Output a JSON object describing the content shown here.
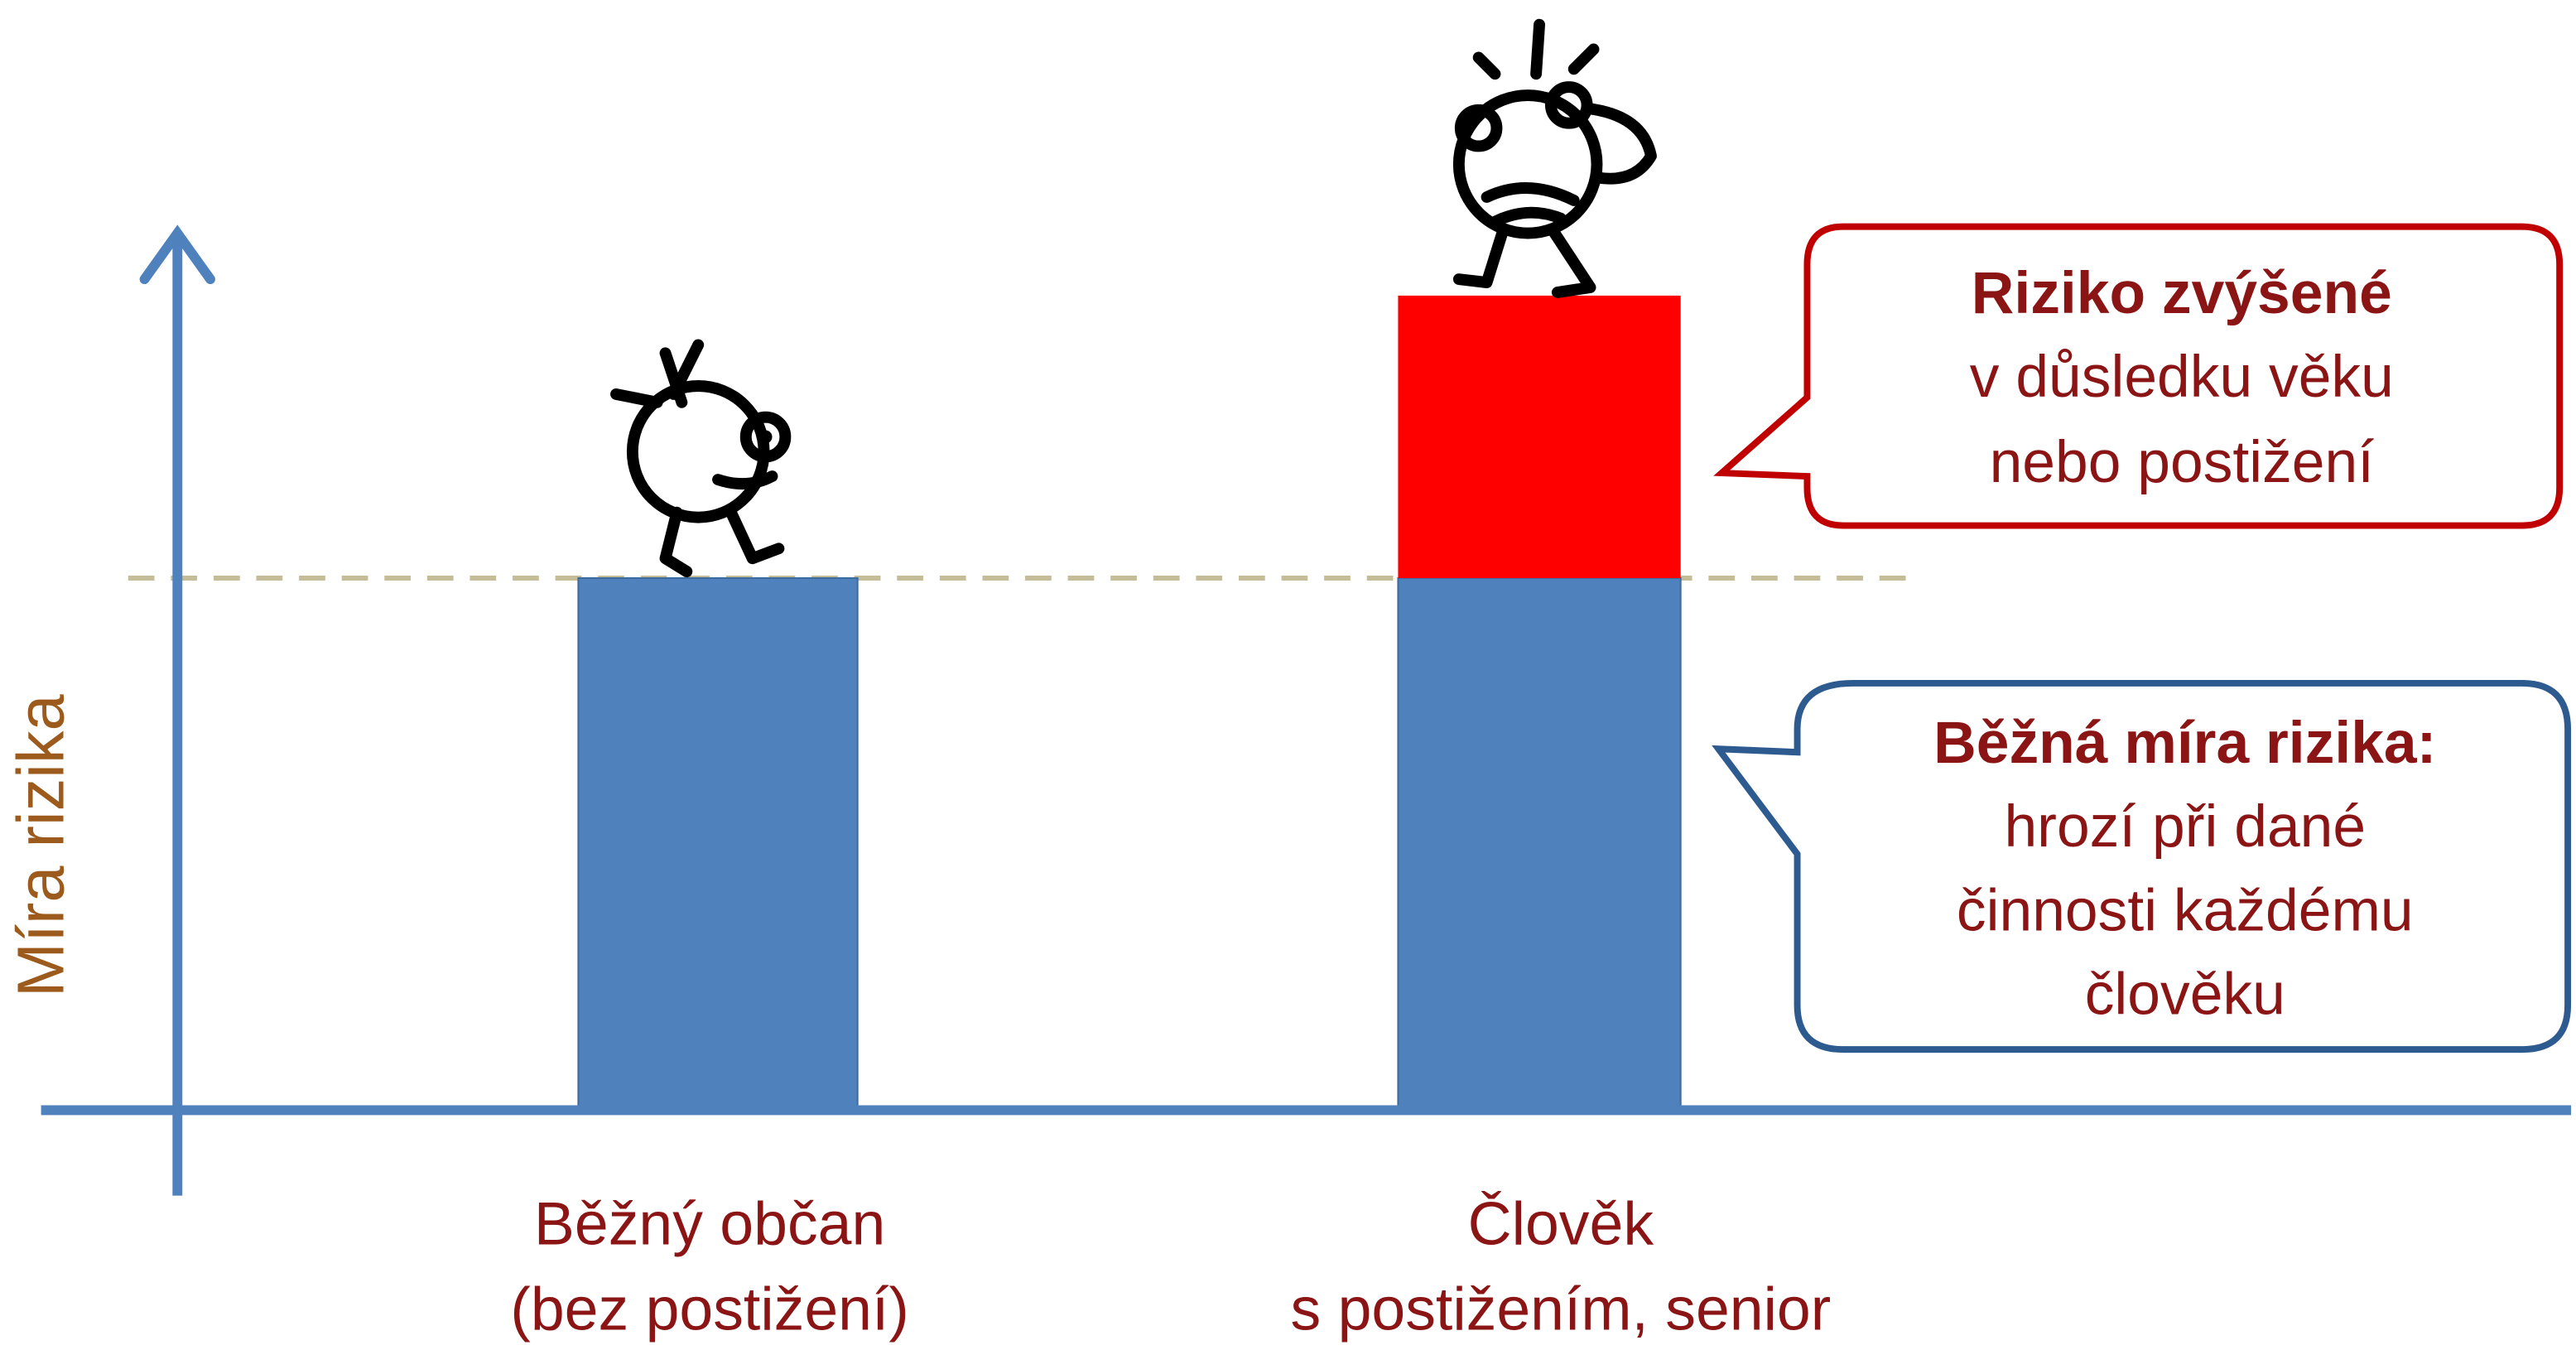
{
  "axis": {
    "y_label": "Míra rizika"
  },
  "categories": [
    {
      "lines": [
        "Běžný občan",
        "(bez postižení)"
      ]
    },
    {
      "lines": [
        "Člověk",
        "s postižením, senior"
      ]
    }
  ],
  "callouts": [
    {
      "title": "Riziko zvýšené",
      "lines": [
        "v důsledku věku",
        "nebo postižení"
      ]
    },
    {
      "title": "Běžná míra rizika:",
      "lines": [
        "hrozí při dané",
        "činnosti každému",
        "člověku"
      ]
    }
  ]
}
